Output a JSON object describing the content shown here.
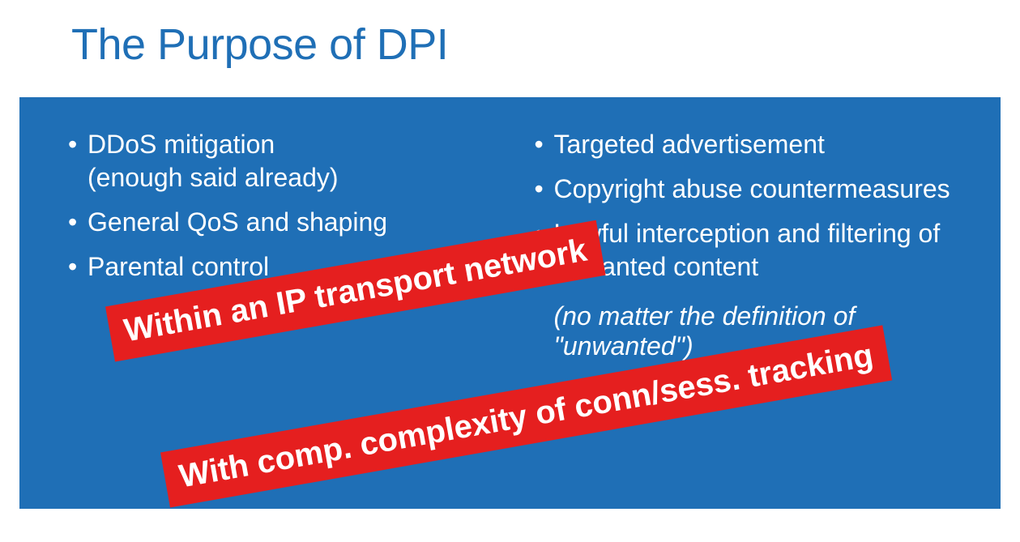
{
  "slide": {
    "title": "The Purpose of DPI",
    "title_color": "#1f6fb6",
    "title_fontsize": 54,
    "background_color": "#ffffff"
  },
  "panel": {
    "background_color": "#1f6fb6",
    "text_color": "#ffffff",
    "fontsize": 32
  },
  "left_column": {
    "items": [
      "DDoS mitigation\n(enough said already)",
      "General QoS and shaping",
      "Parental control"
    ]
  },
  "right_column": {
    "items": [
      "Targeted advertisement",
      "Copyright abuse countermeasures",
      "Lawful interception and filtering of unwanted content"
    ],
    "footnote": "(no matter the definition of \"unwanted\")"
  },
  "overlays": {
    "band_background": "#e51f1f",
    "band_text_color": "#ffffff",
    "band_fontsize": 40,
    "rotation_deg": -10,
    "band1_text": "Within an IP transport network",
    "band2_text": "With comp. complexity of conn/sess. tracking"
  }
}
